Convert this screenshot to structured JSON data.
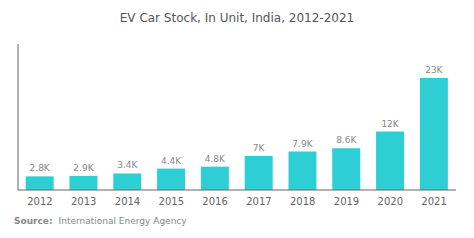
{
  "chart_data": {
    "type": "bar",
    "title": "EV Car Stock, In Unit, India, 2012-2021",
    "categories": [
      "2012",
      "2013",
      "2014",
      "2015",
      "2016",
      "2017",
      "2018",
      "2019",
      "2020",
      "2021"
    ],
    "values": [
      2800,
      2900,
      3400,
      4400,
      4800,
      7000,
      7900,
      8600,
      12000,
      23000
    ],
    "value_labels": [
      "2.8K",
      "2.9K",
      "3.4K",
      "4.4K",
      "4.8K",
      "7K",
      "7.9K",
      "8.6K",
      "12K",
      "23K"
    ],
    "data_labels": true,
    "color": "#2ECFD4",
    "ylim": [
      0,
      30000
    ],
    "tick_labels": "x",
    "grid": false,
    "annotations": [
      "Source:",
      "International Energy Agency"
    ]
  }
}
